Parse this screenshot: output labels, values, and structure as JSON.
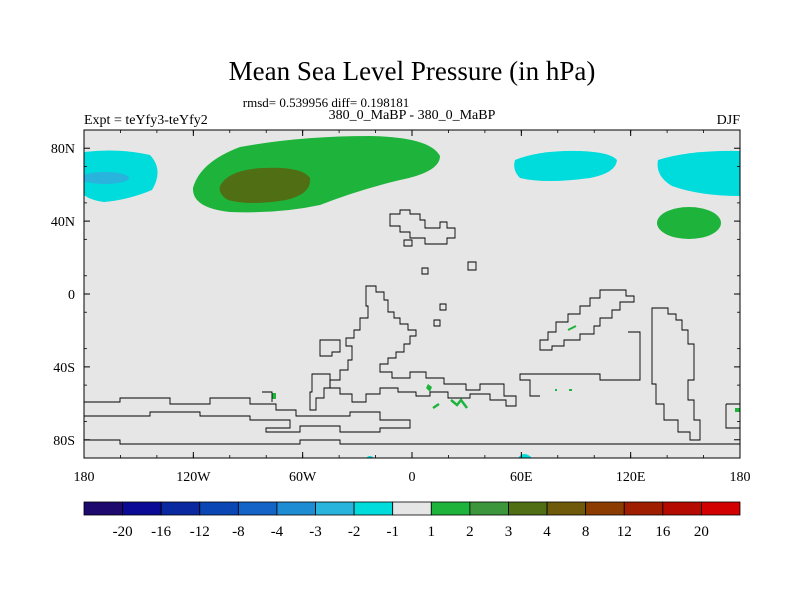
{
  "chart_data": {
    "type": "heatmap",
    "title": "Mean Sea Level Pressure (in hPa)",
    "subtitle_stats": "rmsd= 0.539956 diff= 0.198181",
    "subtitle_left": "Expt = teYfy3-teYfy2",
    "subtitle_center": "380_0_MaBP - 380_0_MaBP",
    "subtitle_right": "DJF",
    "x_ticks": [
      {
        "value": -180,
        "label": "180"
      },
      {
        "value": -120,
        "label": "120W"
      },
      {
        "value": -60,
        "label": "60W"
      },
      {
        "value": 0,
        "label": "0"
      },
      {
        "value": 60,
        "label": "60E"
      },
      {
        "value": 120,
        "label": "120E"
      },
      {
        "value": 180,
        "label": "180"
      }
    ],
    "y_ticks": [
      {
        "value": 80,
        "label": "80N"
      },
      {
        "value": 40,
        "label": "40N"
      },
      {
        "value": 0,
        "label": "0"
      },
      {
        "value": -40,
        "label": "40S"
      },
      {
        "value": -80,
        "label": "80S"
      }
    ],
    "xlim": [
      -180,
      180
    ],
    "ylim": [
      -90,
      90
    ],
    "colorbar": {
      "levels": [
        "-20",
        "-16",
        "-12",
        "-8",
        "-4",
        "-3",
        "-2",
        "-1",
        "1",
        "2",
        "3",
        "4",
        "8",
        "12",
        "16",
        "20"
      ],
      "colors": [
        "#1e0a6e",
        "#0a0a96",
        "#0a28a0",
        "#0a46b4",
        "#1464c8",
        "#1e8cd2",
        "#28b4dc",
        "#00dcdc",
        "#e6e6e6",
        "#1eb43c",
        "#3c963c",
        "#506e14",
        "#6e5a0a",
        "#8c3c00",
        "#a01e00",
        "#b40a00",
        "#d20000"
      ]
    },
    "anomaly_regions": [
      {
        "name": "north-pacific-low",
        "level": "-1",
        "lon_range": [
          -180,
          -152
        ],
        "lat_range": [
          52,
          82
        ]
      },
      {
        "name": "north-pacific-low-core",
        "level": "-2",
        "lon_range": [
          -178,
          -164
        ],
        "lat_range": [
          60,
          66
        ]
      },
      {
        "name": "north-atlantic-high",
        "level": "1",
        "lon_range": [
          -118,
          15
        ],
        "lat_range": [
          47,
          87
        ]
      },
      {
        "name": "north-atlantic-high-core",
        "level": "2",
        "lon_range": [
          -104,
          -54
        ],
        "lat_range": [
          53,
          74
        ]
      },
      {
        "name": "eurasia-low",
        "level": "-1",
        "lon_range": [
          57,
          110
        ],
        "lat_range": [
          64,
          80
        ]
      },
      {
        "name": "east-asia-low",
        "level": "-1",
        "lon_range": [
          134,
          180
        ],
        "lat_range": [
          56,
          81
        ]
      },
      {
        "name": "west-pacific-high",
        "level": "1",
        "lon_range": [
          134,
          169
        ],
        "lat_range": [
          31,
          50
        ]
      }
    ]
  }
}
